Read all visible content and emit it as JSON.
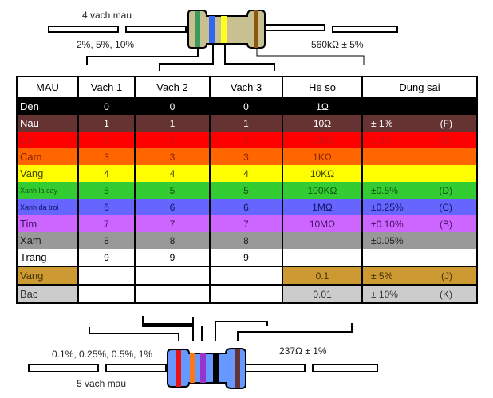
{
  "top": {
    "title": "4 vach mau",
    "tolerance_note": "2%, 5%, 10%",
    "example": "560kΩ ± 5%",
    "bands": [
      "#3a9a5c",
      "#3366ee",
      "#ffff22",
      "#8b5a10"
    ],
    "body_color": "#c8c090"
  },
  "bottom": {
    "title": "5 vach mau",
    "tolerance_note": "0.1%, 0.25%, 0.5%, 1%",
    "example": "237Ω ± 1%",
    "bands": [
      "#ee1111",
      "#ff7711",
      "#9933cc",
      "#000000",
      "#663333"
    ],
    "body_color": "#6699ff"
  },
  "table": {
    "headers": [
      "MAU",
      "Vach 1",
      "Vach 2",
      "Vach 3",
      "He so",
      "Dung sai"
    ],
    "rows": [
      {
        "name": "Den",
        "v1": "0",
        "v2": "0",
        "v3": "0",
        "mult": "1Ω",
        "tol": "",
        "code": "",
        "bg": "#000000",
        "fg": "#ffffff"
      },
      {
        "name": "Nau",
        "v1": "1",
        "v2": "1",
        "v3": "1",
        "mult": "10Ω",
        "tol": "±  1%",
        "code": "(F)",
        "bg": "#663333",
        "fg": "#ffffff"
      },
      {
        "name": "Do",
        "v1": "2",
        "v2": "2",
        "v3": "2",
        "mult": "100Ω",
        "tol": "±  2%",
        "code": "(G)",
        "bg": "#ff0000",
        "fg": "#cc1111"
      },
      {
        "name": "Cam",
        "v1": "3",
        "v2": "3",
        "v3": "3",
        "mult": "1KΩ",
        "tol": "",
        "code": "",
        "bg": "#ff6600",
        "fg": "#882200"
      },
      {
        "name": "Vang",
        "v1": "4",
        "v2": "4",
        "v3": "4",
        "mult": "10KΩ",
        "tol": "",
        "code": "",
        "bg": "#ffff00",
        "fg": "#444400"
      },
      {
        "name": "Xanh la cay",
        "v1": "5",
        "v2": "5",
        "v3": "5",
        "mult": "100KΩ",
        "tol": "±0.5%",
        "code": "(D)",
        "bg": "#33cc33",
        "fg": "#115511"
      },
      {
        "name": "Xanh da troi",
        "v1": "6",
        "v2": "6",
        "v3": "6",
        "mult": "1MΩ",
        "tol": "±0.25%",
        "code": "(C)",
        "bg": "#6666ff",
        "fg": "#111166"
      },
      {
        "name": "Tim",
        "v1": "7",
        "v2": "7",
        "v3": "7",
        "mult": "10MΩ",
        "tol": "±0.10%",
        "code": "(B)",
        "bg": "#cc66ff",
        "fg": "#441166"
      },
      {
        "name": "Xam",
        "v1": "8",
        "v2": "8",
        "v3": "8",
        "mult": "",
        "tol": "±0.05%",
        "code": "",
        "bg": "#999999",
        "fg": "#222222"
      },
      {
        "name": "Trang",
        "v1": "9",
        "v2": "9",
        "v3": "9",
        "mult": "",
        "tol": "",
        "code": "",
        "bg": "#ffffff",
        "fg": "#000000"
      },
      {
        "name": "Vang",
        "v1": "",
        "v2": "",
        "v3": "",
        "mult": "0.1",
        "tol": "±   5%",
        "code": "(J)",
        "bg": "#cc9933",
        "fg": "#443300",
        "partial": true
      },
      {
        "name": "Bac",
        "v1": "",
        "v2": "",
        "v3": "",
        "mult": "0.01",
        "tol": "±  10%",
        "code": "(K)",
        "bg": "#cccccc",
        "fg": "#333333",
        "partial": true
      }
    ]
  }
}
